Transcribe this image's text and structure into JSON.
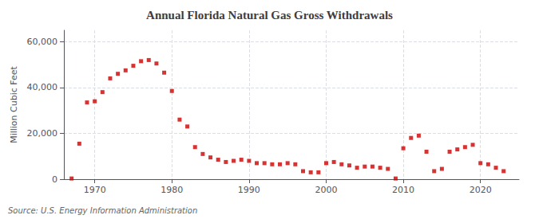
{
  "chart_data": {
    "type": "scatter",
    "title": "Annual Florida Natural Gas Gross Withdrawals",
    "ylabel": "Million Cubic Feet",
    "annotation": "Source: U.S. Energy Information Administration",
    "x": [
      1967,
      1968,
      1969,
      1970,
      1971,
      1972,
      1973,
      1974,
      1975,
      1976,
      1977,
      1978,
      1979,
      1980,
      1981,
      1982,
      1983,
      1984,
      1985,
      1986,
      1987,
      1988,
      1989,
      1990,
      1991,
      1992,
      1993,
      1994,
      1995,
      1996,
      1997,
      1998,
      1999,
      2000,
      2001,
      2002,
      2003,
      2004,
      2005,
      2006,
      2007,
      2008,
      2009,
      2010,
      2011,
      2012,
      2013,
      2014,
      2015,
      2016,
      2017,
      2018,
      2019,
      2020,
      2021,
      2022,
      2023
    ],
    "values": [
      300,
      15500,
      33500,
      34000,
      38000,
      44000,
      46000,
      47500,
      49500,
      51500,
      52000,
      50500,
      46500,
      38500,
      26000,
      23000,
      14000,
      11000,
      9500,
      8500,
      7500,
      8000,
      8500,
      8000,
      7000,
      7000,
      6500,
      6500,
      7000,
      6500,
      3500,
      3000,
      3000,
      7000,
      7500,
      6500,
      6000,
      5000,
      5500,
      5500,
      5000,
      4500,
      300,
      13500,
      18000,
      19000,
      12000,
      3500,
      4500,
      12000,
      13000,
      14000,
      15000,
      7000,
      6500,
      5000,
      3500
    ],
    "color": "#cc0000",
    "marker": "square",
    "xlim": [
      1966,
      2025
    ],
    "xticks": [
      1970,
      1980,
      1990,
      2000,
      2010,
      2020
    ],
    "ylim": [
      0,
      65000
    ],
    "yticks": [
      0,
      {
        "value": 20000,
        "label": "20,000"
      },
      {
        "value": 40000,
        "label": "40,000"
      },
      {
        "value": 60000,
        "label": "60,000"
      }
    ],
    "grid": true
  }
}
